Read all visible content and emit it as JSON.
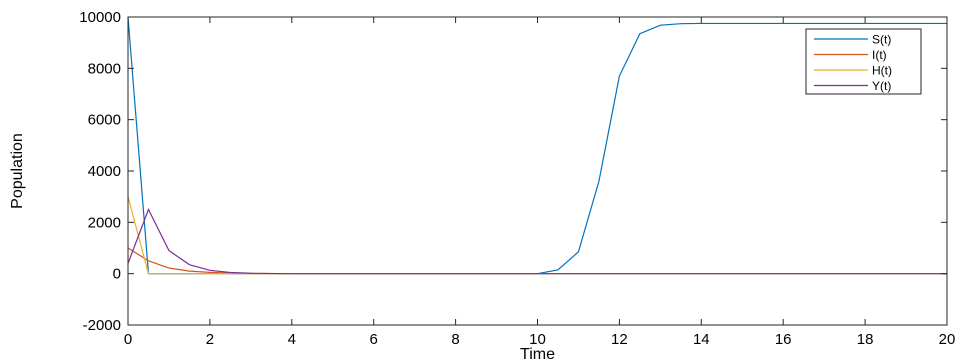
{
  "chart_data": {
    "type": "line",
    "title": "",
    "xlabel": "Time",
    "ylabel": "Population",
    "xlim": [
      0,
      20
    ],
    "ylim": [
      -2000,
      10000
    ],
    "x_ticks": [
      0,
      2,
      4,
      6,
      8,
      10,
      12,
      14,
      16,
      18,
      20
    ],
    "y_ticks": [
      -2000,
      0,
      2000,
      4000,
      6000,
      8000,
      10000
    ],
    "grid": false,
    "legend_position": "top-right",
    "series": [
      {
        "name": "S(t)",
        "color": "#0072BD",
        "points": [
          [
            0,
            10000
          ],
          [
            0.5,
            0
          ],
          [
            1,
            0
          ],
          [
            2,
            0
          ],
          [
            4,
            0
          ],
          [
            6,
            0
          ],
          [
            8,
            0
          ],
          [
            10,
            0
          ],
          [
            10.5,
            150
          ],
          [
            11,
            850
          ],
          [
            11.5,
            3600
          ],
          [
            12,
            7700
          ],
          [
            12.5,
            9350
          ],
          [
            13,
            9680
          ],
          [
            13.5,
            9740
          ],
          [
            14,
            9750
          ],
          [
            16,
            9750
          ],
          [
            18,
            9750
          ],
          [
            20,
            9750
          ]
        ]
      },
      {
        "name": "I(t)",
        "color": "#D95319",
        "points": [
          [
            0,
            1000
          ],
          [
            0.5,
            500
          ],
          [
            1,
            220
          ],
          [
            1.5,
            100
          ],
          [
            2,
            50
          ],
          [
            2.5,
            20
          ],
          [
            3,
            8
          ],
          [
            4,
            0
          ],
          [
            20,
            0
          ]
        ]
      },
      {
        "name": "H(t)",
        "color": "#EDB120",
        "points": [
          [
            0,
            3000
          ],
          [
            0.5,
            0
          ],
          [
            20,
            0
          ]
        ]
      },
      {
        "name": "Y(t)",
        "color": "#7E2F8E",
        "points": [
          [
            0,
            400
          ],
          [
            0.5,
            2500
          ],
          [
            1,
            900
          ],
          [
            1.5,
            350
          ],
          [
            2,
            130
          ],
          [
            2.5,
            45
          ],
          [
            3,
            15
          ],
          [
            4,
            0
          ],
          [
            20,
            0
          ]
        ]
      }
    ]
  }
}
